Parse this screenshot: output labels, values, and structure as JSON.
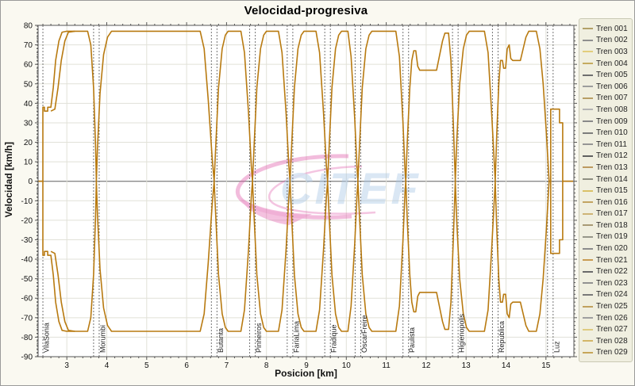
{
  "window": {
    "background": "#faf9f1",
    "border_color": "#9a9a9a"
  },
  "watermark": {
    "text": "CITEF",
    "text_color": "#aac6e4",
    "swoosh_color": "#e05aaa"
  },
  "chart_data": {
    "type": "line",
    "title": "Velocidad-progresiva",
    "xlabel": "Posicion [km]",
    "ylabel": "Velocidad [km/h]",
    "xlim": [
      2.28,
      15.7
    ],
    "ylim": [
      -90,
      80
    ],
    "x_ticks": [
      3,
      4,
      5,
      6,
      7,
      8,
      9,
      10,
      11,
      12,
      13,
      14,
      15
    ],
    "y_ticks": [
      80,
      70,
      60,
      50,
      40,
      30,
      20,
      10,
      0,
      -10,
      -20,
      -30,
      -40,
      -50,
      -60,
      -70,
      -80,
      -90
    ],
    "x_minor_step": 0.2,
    "y_minor_step": 2,
    "grid": true,
    "grid_color": "#e1e1d8",
    "zero_line_color": "#8a8a8a",
    "frame_color": "#555555",
    "curve_color": "#b87a10",
    "station_line_color": "#666666",
    "legend_position": "right",
    "stations": [
      {
        "name": "VilaSonia",
        "km": 2.33
      },
      {
        "name": "Morumbi",
        "km": 3.74
      },
      {
        "name": "Butanta",
        "km": 6.69
      },
      {
        "name": "Pinheiros",
        "km": 7.65
      },
      {
        "name": "FariaLima",
        "km": 8.59
      },
      {
        "name": "Fradique",
        "km": 9.53
      },
      {
        "name": "OscarFreire",
        "km": 10.29
      },
      {
        "name": "Paulista",
        "km": 11.49
      },
      {
        "name": "Higienopolis",
        "km": 12.73
      },
      {
        "name": "Republica",
        "km": 13.73
      },
      {
        "name": "Luz",
        "km": 15.11
      }
    ],
    "speed_profile_up": [
      [
        2.28,
        0
      ],
      [
        2.4,
        0
      ],
      [
        2.4,
        38
      ],
      [
        2.44,
        38
      ],
      [
        2.44,
        36
      ],
      [
        2.52,
        36
      ],
      [
        2.52,
        38
      ],
      [
        2.6,
        38
      ],
      [
        2.66,
        48
      ],
      [
        2.72,
        62
      ],
      [
        2.8,
        72
      ],
      [
        2.88,
        76.5
      ],
      [
        3.0,
        77
      ],
      [
        3.52,
        77
      ],
      [
        3.6,
        70
      ],
      [
        3.67,
        48
      ],
      [
        3.72,
        18
      ],
      [
        3.74,
        0
      ],
      [
        3.77,
        18
      ],
      [
        3.83,
        45
      ],
      [
        3.92,
        65
      ],
      [
        4.02,
        74
      ],
      [
        4.12,
        77
      ],
      [
        6.34,
        77
      ],
      [
        6.44,
        68
      ],
      [
        6.54,
        42
      ],
      [
        6.64,
        12
      ],
      [
        6.69,
        0
      ],
      [
        6.73,
        18
      ],
      [
        6.8,
        48
      ],
      [
        6.89,
        68
      ],
      [
        6.97,
        75
      ],
      [
        7.04,
        77
      ],
      [
        7.36,
        77
      ],
      [
        7.45,
        66
      ],
      [
        7.55,
        35
      ],
      [
        7.62,
        8
      ],
      [
        7.65,
        0
      ],
      [
        7.69,
        18
      ],
      [
        7.76,
        48
      ],
      [
        7.85,
        68
      ],
      [
        7.93,
        75
      ],
      [
        8.0,
        77
      ],
      [
        8.3,
        77
      ],
      [
        8.39,
        66
      ],
      [
        8.49,
        35
      ],
      [
        8.56,
        8
      ],
      [
        8.59,
        0
      ],
      [
        8.63,
        18
      ],
      [
        8.7,
        48
      ],
      [
        8.79,
        68
      ],
      [
        8.87,
        75
      ],
      [
        8.94,
        77
      ],
      [
        9.24,
        77
      ],
      [
        9.33,
        66
      ],
      [
        9.43,
        35
      ],
      [
        9.5,
        8
      ],
      [
        9.53,
        0
      ],
      [
        9.57,
        18
      ],
      [
        9.64,
        48
      ],
      [
        9.73,
        68
      ],
      [
        9.81,
        75
      ],
      [
        9.88,
        77
      ],
      [
        10.04,
        77
      ],
      [
        10.12,
        64
      ],
      [
        10.21,
        32
      ],
      [
        10.27,
        6
      ],
      [
        10.29,
        0
      ],
      [
        10.33,
        18
      ],
      [
        10.4,
        48
      ],
      [
        10.49,
        68
      ],
      [
        10.57,
        75
      ],
      [
        10.64,
        77
      ],
      [
        11.24,
        77
      ],
      [
        11.33,
        64
      ],
      [
        11.42,
        30
      ],
      [
        11.47,
        6
      ],
      [
        11.49,
        0
      ],
      [
        11.53,
        22
      ],
      [
        11.59,
        48
      ],
      [
        11.64,
        62
      ],
      [
        11.69,
        67
      ],
      [
        11.74,
        67
      ],
      [
        11.79,
        59
      ],
      [
        11.84,
        57
      ],
      [
        12.26,
        57
      ],
      [
        12.33,
        64
      ],
      [
        12.41,
        72
      ],
      [
        12.47,
        76
      ],
      [
        12.56,
        76
      ],
      [
        12.62,
        62
      ],
      [
        12.68,
        30
      ],
      [
        12.73,
        0
      ],
      [
        12.77,
        22
      ],
      [
        12.84,
        50
      ],
      [
        12.93,
        68
      ],
      [
        13.01,
        75
      ],
      [
        13.08,
        77
      ],
      [
        13.46,
        77
      ],
      [
        13.55,
        66
      ],
      [
        13.64,
        35
      ],
      [
        13.71,
        8
      ],
      [
        13.73,
        0
      ],
      [
        13.77,
        25
      ],
      [
        13.82,
        50
      ],
      [
        13.86,
        62
      ],
      [
        13.91,
        62
      ],
      [
        13.94,
        58
      ],
      [
        13.99,
        58
      ],
      [
        14.03,
        68
      ],
      [
        14.08,
        70
      ],
      [
        14.12,
        63
      ],
      [
        14.17,
        62
      ],
      [
        14.36,
        62
      ],
      [
        14.43,
        68
      ],
      [
        14.5,
        74
      ],
      [
        14.57,
        77
      ],
      [
        14.76,
        77
      ],
      [
        14.85,
        68
      ],
      [
        14.93,
        50
      ],
      [
        15.01,
        25
      ],
      [
        15.08,
        0
      ],
      [
        15.12,
        0
      ],
      [
        15.12,
        37
      ],
      [
        15.34,
        37
      ],
      [
        15.34,
        30
      ],
      [
        15.42,
        30
      ],
      [
        15.42,
        0
      ],
      [
        15.68,
        0
      ]
    ],
    "speed_profile_up_branch": [
      [
        2.6,
        36
      ],
      [
        2.7,
        37
      ],
      [
        2.78,
        48
      ],
      [
        2.86,
        62
      ],
      [
        2.95,
        72
      ],
      [
        3.04,
        76.5
      ],
      [
        3.2,
        77
      ]
    ],
    "mirror_down": true,
    "legend": {
      "items": [
        {
          "label": "Tren 001",
          "color": "#b2a168"
        },
        {
          "label": "Tren 002",
          "color": "#8f8f8f"
        },
        {
          "label": "Tren 003",
          "color": "#e2cd7c"
        },
        {
          "label": "Tren 004",
          "color": "#c5ab60"
        },
        {
          "label": "Tren 005",
          "color": "#6f6f6f"
        },
        {
          "label": "Tren 006",
          "color": "#9d9d9d"
        },
        {
          "label": "Tren 007",
          "color": "#b89f66"
        },
        {
          "label": "Tren 008",
          "color": "#b4b4b4"
        },
        {
          "label": "Tren 009",
          "color": "#898989"
        },
        {
          "label": "Tren 010",
          "color": "#7c7c7c"
        },
        {
          "label": "Tren 011",
          "color": "#959595"
        },
        {
          "label": "Tren 012",
          "color": "#606060"
        },
        {
          "label": "Tren 013",
          "color": "#bd9a60"
        },
        {
          "label": "Tren 014",
          "color": "#8f8f82"
        },
        {
          "label": "Tren 015",
          "color": "#dac168"
        },
        {
          "label": "Tren 016",
          "color": "#c3a462"
        },
        {
          "label": "Tren 017",
          "color": "#ceb476"
        },
        {
          "label": "Tren 018",
          "color": "#a89a75"
        },
        {
          "label": "Tren 019",
          "color": "#96968a"
        },
        {
          "label": "Tren 020",
          "color": "#8c8c8c"
        },
        {
          "label": "Tren 021",
          "color": "#c89b52"
        },
        {
          "label": "Tren 022",
          "color": "#6a6a6a"
        },
        {
          "label": "Tren 023",
          "color": "#919191"
        },
        {
          "label": "Tren 024",
          "color": "#797979"
        },
        {
          "label": "Tren 025",
          "color": "#c0a15e"
        },
        {
          "label": "Tren 026",
          "color": "#9f9f9f"
        },
        {
          "label": "Tren 027",
          "color": "#decb80"
        },
        {
          "label": "Tren 028",
          "color": "#d3b667"
        },
        {
          "label": "Tren 029",
          "color": "#c7a658"
        }
      ]
    }
  }
}
